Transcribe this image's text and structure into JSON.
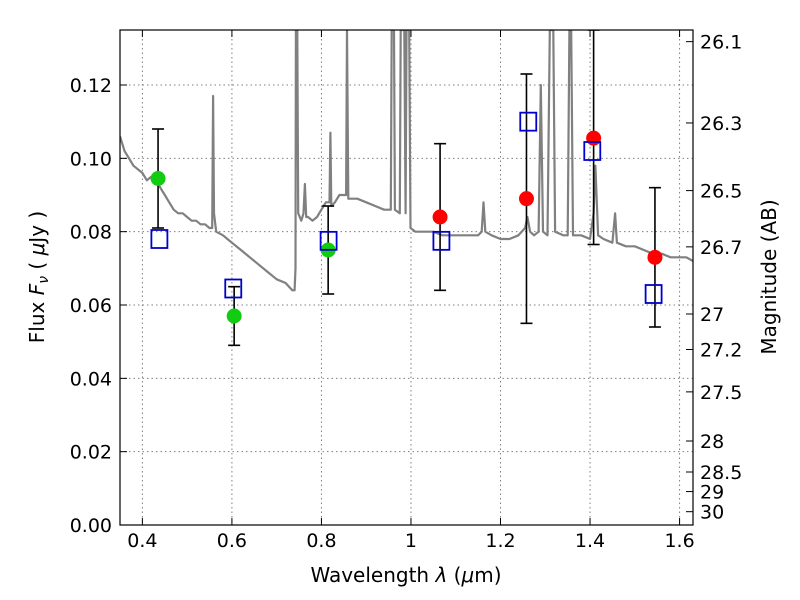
{
  "chart_data": {
    "type": "scatter",
    "title": "",
    "xlabel": "Wavelength  λ (μm)",
    "ylabel": "Flux  F_ν  ( μJy )",
    "ylabel_parts": {
      "pre": "Flux  ",
      "sym": "F",
      "sub": "ν",
      "mid": "  ( ",
      "mu": "μ",
      "post": "Jy )"
    },
    "xlabel_parts": {
      "pre": "Wavelength  ",
      "lam": "λ",
      "mid": " (",
      "mu": "μ",
      "post": "m)"
    },
    "y2label": "Magnitude (AB)",
    "xlim": [
      0.35,
      1.63
    ],
    "ylim": [
      0.0,
      0.135
    ],
    "grid": true,
    "x_ticks": [
      {
        "value": 0.4,
        "label": "0.4"
      },
      {
        "value": 0.6,
        "label": "0.6"
      },
      {
        "value": 0.8,
        "label": "0.8"
      },
      {
        "value": 1.0,
        "label": "1"
      },
      {
        "value": 1.2,
        "label": "1.2"
      },
      {
        "value": 1.4,
        "label": "1.4"
      },
      {
        "value": 1.6,
        "label": "1.6"
      }
    ],
    "y_ticks": [
      {
        "value": 0.0,
        "label": "0.00"
      },
      {
        "value": 0.02,
        "label": "0.02"
      },
      {
        "value": 0.04,
        "label": "0.04"
      },
      {
        "value": 0.06,
        "label": "0.06"
      },
      {
        "value": 0.08,
        "label": "0.08"
      },
      {
        "value": 0.1,
        "label": "0.10"
      },
      {
        "value": 0.12,
        "label": "0.12"
      }
    ],
    "y2_ticks": [
      {
        "mag": 26.1,
        "label": "26.1"
      },
      {
        "mag": 26.3,
        "label": "26.3"
      },
      {
        "mag": 26.5,
        "label": "26.5"
      },
      {
        "mag": 26.7,
        "label": "26.7"
      },
      {
        "mag": 27.0,
        "label": "27"
      },
      {
        "mag": 27.2,
        "label": "27.2"
      },
      {
        "mag": 27.5,
        "label": "27.5"
      },
      {
        "mag": 28.0,
        "label": "28"
      },
      {
        "mag": 28.5,
        "label": "28.5"
      },
      {
        "mag": 29.0,
        "label": "29"
      },
      {
        "mag": 30.0,
        "label": "30"
      }
    ],
    "colors": {
      "spectrum": "#808080",
      "green_points": "#11cc11",
      "red_points": "#ff0000",
      "model_squares": "#0000cc",
      "error_bars": "#000000"
    },
    "series": [
      {
        "type": "line",
        "values": [
          [
            0.35,
            0.106
          ],
          [
            0.36,
            0.102
          ],
          [
            0.37,
            0.1
          ],
          [
            0.38,
            0.098
          ],
          [
            0.39,
            0.097
          ],
          [
            0.4,
            0.096
          ],
          [
            0.41,
            0.094
          ],
          [
            0.42,
            0.095
          ],
          [
            0.43,
            0.094
          ],
          [
            0.44,
            0.092
          ],
          [
            0.45,
            0.09
          ],
          [
            0.46,
            0.088
          ],
          [
            0.47,
            0.086
          ],
          [
            0.48,
            0.085
          ],
          [
            0.49,
            0.085
          ],
          [
            0.5,
            0.084
          ],
          [
            0.51,
            0.083
          ],
          [
            0.52,
            0.083
          ],
          [
            0.53,
            0.082
          ],
          [
            0.54,
            0.082
          ],
          [
            0.55,
            0.081
          ],
          [
            0.556,
            0.081
          ],
          [
            0.558,
            0.117
          ],
          [
            0.56,
            0.085
          ],
          [
            0.565,
            0.08
          ],
          [
            0.58,
            0.079
          ],
          [
            0.59,
            0.078
          ],
          [
            0.6,
            0.077
          ],
          [
            0.62,
            0.075
          ],
          [
            0.64,
            0.073
          ],
          [
            0.66,
            0.071
          ],
          [
            0.68,
            0.069
          ],
          [
            0.7,
            0.067
          ],
          [
            0.72,
            0.066
          ],
          [
            0.735,
            0.064
          ],
          [
            0.74,
            0.064
          ],
          [
            0.742,
            0.07
          ],
          [
            0.743,
            0.135
          ],
          [
            0.746,
            0.135
          ],
          [
            0.748,
            0.085
          ],
          [
            0.755,
            0.083
          ],
          [
            0.76,
            0.085
          ],
          [
            0.763,
            0.093
          ],
          [
            0.766,
            0.084
          ],
          [
            0.77,
            0.084
          ],
          [
            0.78,
            0.083
          ],
          [
            0.79,
            0.084
          ],
          [
            0.8,
            0.086
          ],
          [
            0.81,
            0.088
          ],
          [
            0.818,
            0.088
          ],
          [
            0.82,
            0.107
          ],
          [
            0.822,
            0.087
          ],
          [
            0.83,
            0.088
          ],
          [
            0.84,
            0.09
          ],
          [
            0.85,
            0.09
          ],
          [
            0.855,
            0.09
          ],
          [
            0.857,
            0.135
          ],
          [
            0.86,
            0.089
          ],
          [
            0.88,
            0.089
          ],
          [
            0.9,
            0.088
          ],
          [
            0.92,
            0.087
          ],
          [
            0.94,
            0.086
          ],
          [
            0.955,
            0.086
          ],
          [
            0.957,
            0.135
          ],
          [
            0.962,
            0.135
          ],
          [
            0.964,
            0.086
          ],
          [
            0.975,
            0.085
          ],
          [
            0.977,
            0.135
          ],
          [
            0.985,
            0.135
          ],
          [
            0.988,
            0.085
          ],
          [
            0.99,
            0.135
          ],
          [
            0.996,
            0.135
          ],
          [
            0.999,
            0.081
          ],
          [
            1.01,
            0.08
          ],
          [
            1.03,
            0.08
          ],
          [
            1.05,
            0.08
          ],
          [
            1.07,
            0.079
          ],
          [
            1.09,
            0.079
          ],
          [
            1.11,
            0.079
          ],
          [
            1.13,
            0.079
          ],
          [
            1.15,
            0.079
          ],
          [
            1.158,
            0.08
          ],
          [
            1.162,
            0.088
          ],
          [
            1.166,
            0.08
          ],
          [
            1.18,
            0.079
          ],
          [
            1.2,
            0.078
          ],
          [
            1.22,
            0.078
          ],
          [
            1.24,
            0.079
          ],
          [
            1.255,
            0.081
          ],
          [
            1.26,
            0.084
          ],
          [
            1.266,
            0.08
          ],
          [
            1.275,
            0.079
          ],
          [
            1.285,
            0.08
          ],
          [
            1.29,
            0.12
          ],
          [
            1.295,
            0.08
          ],
          [
            1.305,
            0.079
          ],
          [
            1.31,
            0.135
          ],
          [
            1.318,
            0.135
          ],
          [
            1.322,
            0.08
          ],
          [
            1.34,
            0.079
          ],
          [
            1.35,
            0.079
          ],
          [
            1.354,
            0.135
          ],
          [
            1.358,
            0.135
          ],
          [
            1.362,
            0.079
          ],
          [
            1.38,
            0.079
          ],
          [
            1.4,
            0.078
          ],
          [
            1.408,
            0.085
          ],
          [
            1.412,
            0.098
          ],
          [
            1.418,
            0.079
          ],
          [
            1.43,
            0.078
          ],
          [
            1.45,
            0.077
          ],
          [
            1.456,
            0.085
          ],
          [
            1.46,
            0.077
          ],
          [
            1.48,
            0.076
          ],
          [
            1.5,
            0.076
          ],
          [
            1.52,
            0.075
          ],
          [
            1.54,
            0.074
          ],
          [
            1.56,
            0.074
          ],
          [
            1.58,
            0.073
          ],
          [
            1.6,
            0.073
          ],
          [
            1.615,
            0.073
          ],
          [
            1.63,
            0.072
          ]
        ]
      },
      {
        "type": "scatter",
        "marker": "circle",
        "values": [
          [
            0.435,
            0.0945
          ],
          [
            0.605,
            0.057
          ],
          [
            0.815,
            0.075
          ]
        ]
      },
      {
        "type": "scatter",
        "marker": "circle",
        "values": [
          [
            1.065,
            0.084
          ],
          [
            1.258,
            0.089
          ],
          [
            1.408,
            0.1055
          ],
          [
            1.545,
            0.073
          ]
        ]
      },
      {
        "type": "scatter",
        "marker": "square",
        "values": [
          [
            0.438,
            0.078
          ],
          [
            0.603,
            0.0645
          ],
          [
            0.816,
            0.0775
          ],
          [
            1.068,
            0.0775
          ],
          [
            1.262,
            0.11
          ],
          [
            1.405,
            0.102
          ],
          [
            1.542,
            0.063
          ]
        ]
      }
    ],
    "error_bars": [
      {
        "x": 0.435,
        "low": 0.081,
        "high": 0.108
      },
      {
        "x": 0.605,
        "low": 0.049,
        "high": 0.065
      },
      {
        "x": 0.815,
        "low": 0.063,
        "high": 0.087
      },
      {
        "x": 1.065,
        "low": 0.064,
        "high": 0.104
      },
      {
        "x": 1.258,
        "low": 0.055,
        "high": 0.123
      },
      {
        "x": 1.408,
        "low": 0.0765,
        "high": 0.135
      },
      {
        "x": 1.545,
        "low": 0.054,
        "high": 0.092
      }
    ]
  }
}
